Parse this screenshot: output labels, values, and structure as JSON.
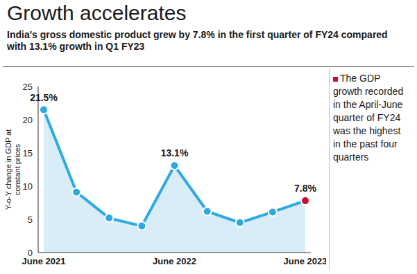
{
  "chart_data": {
    "type": "line",
    "title": "Growth accelerates",
    "subtitle": "India's gross domestic product grew by 7.8% in the first quarter of FY24 compared with 13.1% growth in Q1 FY23",
    "y_label": "Y-o-Y change in GDP at constant prices",
    "annotation": "The GDP growth recorded in the April-June quarter of FY24 was the highest in the past four quarters",
    "categories": [
      "June 2021",
      null,
      null,
      null,
      "June 2022",
      null,
      null,
      null,
      "June 2023"
    ],
    "values": [
      21.5,
      9.1,
      5.2,
      4.0,
      13.1,
      6.2,
      4.5,
      6.1,
      7.8
    ],
    "value_labels": [
      "21.5%",
      null,
      null,
      null,
      "13.1%",
      null,
      null,
      null,
      "7.8%"
    ],
    "data_labels": true,
    "color": "#2eaae1",
    "colors": [
      "#2eaae1",
      "#2eaae1",
      "#2eaae1",
      "#2eaae1",
      "#2eaae1",
      "#2eaae1",
      "#2eaae1",
      "#2eaae1",
      "#c8102e"
    ],
    "marker": "circle",
    "ylim": [
      0,
      25
    ],
    "yticks": [
      0,
      5,
      10,
      15,
      20,
      25
    ],
    "grid": false
  }
}
